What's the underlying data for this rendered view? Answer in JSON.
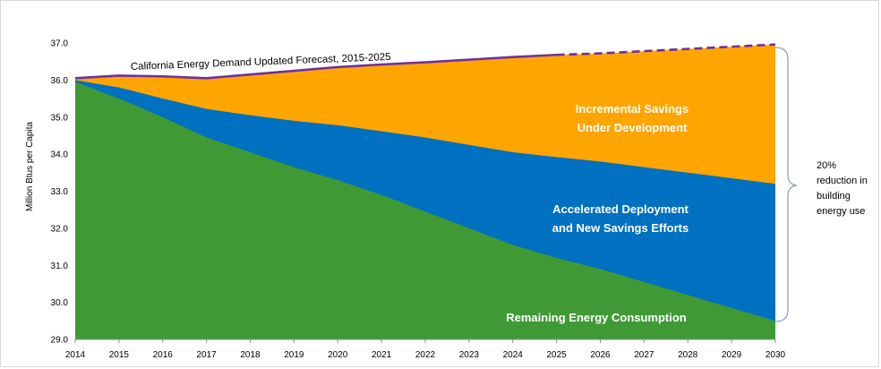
{
  "chart_data": {
    "type": "area",
    "title": "",
    "xlabel": "",
    "ylabel": "Million Btus per Capita",
    "ylim": [
      29.0,
      37.0
    ],
    "y_ticks": [
      "29.0",
      "30.0",
      "31.0",
      "32.0",
      "33.0",
      "34.0",
      "35.0",
      "36.0",
      "37.0"
    ],
    "x": [
      "2014",
      "2015",
      "2016",
      "2017",
      "2018",
      "2019",
      "2020",
      "2021",
      "2022",
      "2023",
      "2024",
      "2025",
      "2026",
      "2027",
      "2028",
      "2029",
      "2030"
    ],
    "forecast_line": {
      "name": "California Energy Demand Updated Forecast, 2015-2025",
      "values": [
        36.05,
        36.12,
        36.1,
        36.05,
        36.15,
        36.25,
        36.35,
        36.42,
        36.48,
        36.55,
        36.62,
        36.68,
        36.72,
        36.78,
        36.84,
        36.9,
        36.96
      ],
      "solid_until": "2025",
      "color": "#7030a0"
    },
    "series": [
      {
        "name": "Remaining Energy Consumption",
        "color": "#3f9a36",
        "values": [
          35.95,
          35.5,
          35.0,
          34.45,
          34.05,
          33.65,
          33.3,
          32.9,
          32.45,
          32.0,
          31.55,
          31.2,
          30.9,
          30.55,
          30.2,
          29.85,
          29.5
        ]
      },
      {
        "name": "Accelerated Deployment\nand New Savings Efforts",
        "color": "#0070c0",
        "values": [
          36.0,
          35.8,
          35.5,
          35.22,
          35.05,
          34.9,
          34.78,
          34.62,
          34.45,
          34.25,
          34.05,
          33.92,
          33.8,
          33.65,
          33.5,
          33.35,
          33.2
        ]
      },
      {
        "name": "Incremental Savings\nUnder Development",
        "color": "#ffa500",
        "values": [
          36.05,
          36.12,
          36.1,
          36.05,
          36.15,
          36.25,
          36.35,
          36.42,
          36.48,
          36.55,
          36.62,
          36.68,
          36.72,
          36.78,
          36.84,
          36.9,
          36.96
        ]
      }
    ],
    "labels": {
      "incremental_1": "Incremental Savings",
      "incremental_2": "Under Development",
      "accelerated_1": "Accelerated Deployment",
      "accelerated_2": "and New Savings Efforts",
      "remaining": "Remaining Energy Consumption"
    },
    "annotation": {
      "line1": "20%",
      "line2": "reduction in",
      "line3": "building",
      "line4": "energy use"
    },
    "grid": false,
    "legend": "none"
  }
}
